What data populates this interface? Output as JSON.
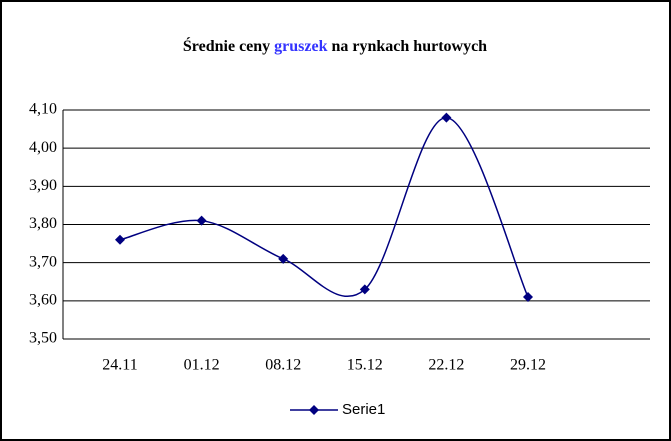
{
  "chart_data": {
    "type": "line",
    "title_parts": [
      "Średnie ceny",
      "gruszek",
      "na rynkach hurtowych"
    ],
    "title_highlight_color": "#3333ff",
    "categories": [
      "24.11",
      "01.12",
      "08.12",
      "15.12",
      "22.12",
      "29.12"
    ],
    "series": [
      {
        "name": "Serie1",
        "color": "#000080",
        "values": [
          3.76,
          3.81,
          3.71,
          3.63,
          4.08,
          3.61
        ]
      }
    ],
    "ylim": [
      3.5,
      4.1
    ],
    "yticks": [
      {
        "value": 3.5,
        "label": "3,50"
      },
      {
        "value": 3.6,
        "label": "3,60"
      },
      {
        "value": 3.7,
        "label": "3,70"
      },
      {
        "value": 3.8,
        "label": "3,80"
      },
      {
        "value": 3.9,
        "label": "3,90"
      },
      {
        "value": 4.0,
        "label": "4,00"
      },
      {
        "value": 4.1,
        "label": "4,10"
      }
    ],
    "grid": true,
    "smooth": true,
    "legend": "bottom"
  }
}
